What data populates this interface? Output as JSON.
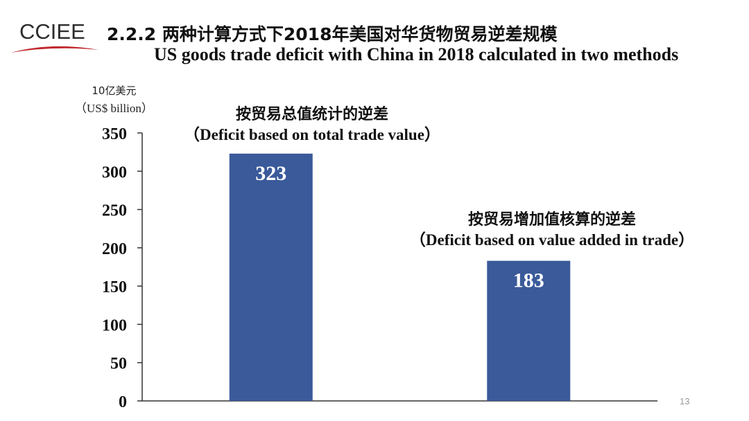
{
  "logo": {
    "text": "CCIEE"
  },
  "title": {
    "cn": "2.2.2 两种计算方式下2018年美国对华货物贸易逆差规模",
    "en": "US goods trade deficit with China in 2018 calculated in two methods"
  },
  "unit": {
    "cn": "10亿美元",
    "en": "（US$ billion）"
  },
  "annotations": [
    {
      "cn": "按贸易总值统计的逆差",
      "en": "（Deficit  based on total trade value）"
    },
    {
      "cn": "按贸易增加值核算的逆差",
      "en": "（Deficit  based on value added in trade）"
    }
  ],
  "page_number": "13",
  "colors": {
    "bar": "#3A5A9A",
    "axis": "#333333",
    "data_label": "#FFFFFF"
  },
  "chart_data": {
    "type": "bar",
    "categories": [
      "",
      ""
    ],
    "values": [
      323,
      183
    ],
    "data_labels": [
      "323",
      "183"
    ],
    "ylim": [
      0,
      350
    ],
    "yticks": [
      0,
      50,
      100,
      150,
      200,
      250,
      300,
      350
    ],
    "ytick_labels": [
      "0",
      "50",
      "100",
      "150",
      "200",
      "250",
      "300",
      "350"
    ],
    "grid": false,
    "legend": "none"
  }
}
